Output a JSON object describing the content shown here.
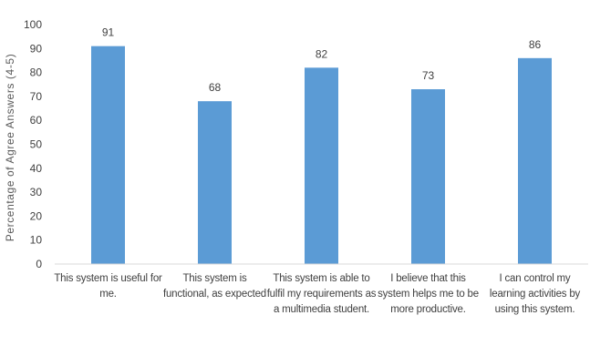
{
  "chart_data": {
    "type": "bar",
    "title": "",
    "xlabel": "",
    "ylabel": "Percentage of Agree Answers (4-5)",
    "ylim": [
      0,
      100
    ],
    "yticks": [
      0,
      10,
      20,
      30,
      40,
      50,
      60,
      70,
      80,
      90,
      100
    ],
    "grid": false,
    "legend": "none",
    "bar_color": "#5b9bd5",
    "categories": [
      "This system is useful for me.",
      "This system is functional, as expected",
      "This system is able to fulfil my requirements as a multimedia student.",
      "I believe that this system helps me to be more productive.",
      "I can control my learning activities by using this system."
    ],
    "values": [
      91,
      68,
      82,
      73,
      86
    ],
    "data_labels": [
      "91",
      "68",
      "82",
      "73",
      "86"
    ]
  }
}
